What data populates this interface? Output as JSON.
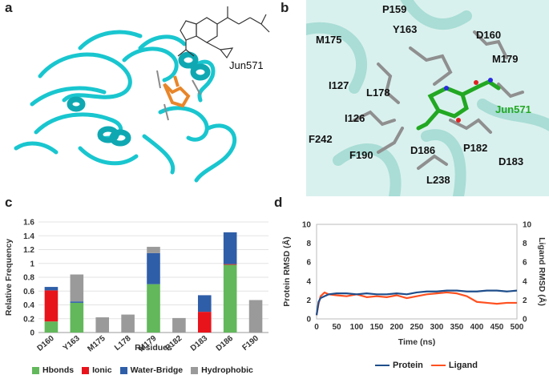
{
  "panels": {
    "a": {
      "label": "a",
      "compound_label": "Jun571",
      "protein_color": "#19c6cf",
      "ligand_color": "#e8862a"
    },
    "b": {
      "label": "b",
      "residues": [
        "P159",
        "Y163",
        "D160",
        "M175",
        "M179",
        "I127",
        "L178",
        "I126",
        "F242",
        "F190",
        "D186",
        "P182",
        "D183",
        "L238"
      ],
      "ligand_label": "Jun571",
      "ligand_color": "#22a822"
    },
    "c": {
      "label": "c",
      "legend": [
        "Hbonds",
        "Ionic",
        "Water-Bridge",
        "Hydrophobic"
      ]
    },
    "d": {
      "label": "d",
      "legend": [
        "Protein",
        "Ligand"
      ]
    }
  },
  "chart_data": [
    {
      "type": "bar",
      "stacked": true,
      "categories": [
        "D160",
        "Y163",
        "M175",
        "L178",
        "M179",
        "P182",
        "D183",
        "D186",
        "F190"
      ],
      "series": [
        {
          "name": "Hbonds",
          "color": "#62b85a",
          "values": [
            0.16,
            0.43,
            0,
            0,
            0.7,
            0,
            0,
            0.98,
            0
          ]
        },
        {
          "name": "Ionic",
          "color": "#e8141c",
          "values": [
            0.45,
            0,
            0,
            0,
            0,
            0,
            0.3,
            0.01,
            0
          ]
        },
        {
          "name": "Water-Bridge",
          "color": "#2f5ea8",
          "values": [
            0.05,
            0.02,
            0,
            0,
            0.45,
            0,
            0.24,
            0.46,
            0
          ]
        },
        {
          "name": "Hydrophobic",
          "color": "#9a9a9a",
          "values": [
            0,
            0.39,
            0.22,
            0.26,
            0.09,
            0.21,
            0,
            0,
            0.47
          ]
        }
      ],
      "xlabel": "Residues",
      "ylabel": "Relative Frequency",
      "ylim": [
        0,
        1.6
      ],
      "yticks": [
        "0",
        "0.2",
        "0.4",
        "0.6",
        "0.8",
        "1",
        "1.2",
        "1.4",
        "1.6"
      ],
      "legend_position": "bottom"
    },
    {
      "type": "line",
      "x_label": "Time (ns)",
      "xlim": [
        0,
        500
      ],
      "xticks": [
        "0",
        "50",
        "100",
        "150",
        "200",
        "250",
        "300",
        "350",
        "400",
        "450",
        "500"
      ],
      "y_left_label": "Protein RMSD (Å)",
      "y_right_label": "Ligand RMSD (Å)",
      "ylim": [
        0,
        10
      ],
      "yticks": [
        "0",
        "2",
        "4",
        "6",
        "8",
        "10"
      ],
      "legend_position": "bottom",
      "series": [
        {
          "name": "Protein",
          "color": "#1f4e8c",
          "x": [
            0,
            5,
            10,
            20,
            30,
            50,
            75,
            100,
            125,
            150,
            175,
            200,
            225,
            250,
            275,
            300,
            325,
            350,
            375,
            400,
            425,
            450,
            475,
            500
          ],
          "y": [
            0.4,
            1.8,
            2.2,
            2.4,
            2.6,
            2.7,
            2.7,
            2.6,
            2.7,
            2.6,
            2.6,
            2.7,
            2.6,
            2.8,
            2.9,
            2.9,
            3.0,
            3.0,
            2.9,
            2.9,
            3.0,
            3.0,
            2.9,
            3.0
          ]
        },
        {
          "name": "Ligand",
          "color": "#ff5020",
          "x": [
            0,
            5,
            10,
            20,
            30,
            50,
            75,
            100,
            125,
            150,
            175,
            200,
            225,
            250,
            275,
            300,
            325,
            350,
            375,
            400,
            425,
            450,
            475,
            500
          ],
          "y": [
            0.4,
            1.6,
            2.4,
            2.8,
            2.6,
            2.5,
            2.4,
            2.6,
            2.3,
            2.4,
            2.3,
            2.5,
            2.2,
            2.4,
            2.6,
            2.7,
            2.8,
            2.7,
            2.4,
            1.8,
            1.7,
            1.6,
            1.7,
            1.7
          ]
        }
      ]
    }
  ]
}
